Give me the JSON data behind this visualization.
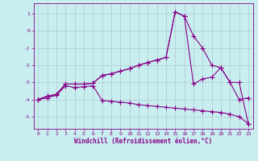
{
  "xlabel": "Windchill (Refroidissement éolien,°C)",
  "background_color": "#c8eef0",
  "line_color": "#880088",
  "grid_color": "#b0c8d0",
  "xlim": [
    -0.5,
    23.5
  ],
  "ylim": [
    -5.7,
    1.6
  ],
  "yticks": [
    1,
    0,
    -1,
    -2,
    -3,
    -4,
    -5
  ],
  "xticks": [
    0,
    1,
    2,
    3,
    4,
    5,
    6,
    7,
    8,
    9,
    10,
    11,
    12,
    13,
    14,
    15,
    16,
    17,
    18,
    19,
    20,
    21,
    22,
    23
  ],
  "line1_x": [
    0,
    1,
    2,
    3,
    4,
    5,
    6,
    7,
    8,
    9,
    10,
    11,
    12,
    13,
    14,
    15,
    16,
    17,
    18,
    19,
    20,
    21,
    22,
    23
  ],
  "line1_y": [
    -4.0,
    -3.8,
    -3.7,
    -3.1,
    -3.1,
    -3.1,
    -3.05,
    -2.6,
    -2.5,
    -2.35,
    -2.2,
    -2.0,
    -1.85,
    -1.7,
    -1.55,
    1.1,
    0.85,
    -0.3,
    -1.0,
    -2.0,
    -2.15,
    -3.0,
    -3.0,
    -5.4
  ],
  "line2_x": [
    0,
    1,
    2,
    3,
    4,
    5,
    6,
    7,
    8,
    9,
    10,
    11,
    12,
    13,
    14,
    15,
    16,
    17,
    18,
    19,
    20,
    21,
    22,
    23
  ],
  "line2_y": [
    -4.0,
    -3.8,
    -3.7,
    -3.1,
    -3.1,
    -3.1,
    -3.05,
    -2.6,
    -2.5,
    -2.35,
    -2.2,
    -2.0,
    -1.85,
    -1.7,
    -1.55,
    1.1,
    0.85,
    -3.1,
    -2.8,
    -2.7,
    -2.15,
    -3.0,
    -4.0,
    -3.9
  ],
  "line3_x": [
    0,
    1,
    2,
    3,
    4,
    5,
    6,
    7,
    8,
    9,
    10,
    11,
    12,
    13,
    14,
    15,
    16,
    17,
    18,
    19,
    20,
    21,
    22,
    23
  ],
  "line3_y": [
    -4.0,
    -3.9,
    -3.75,
    -3.2,
    -3.3,
    -3.25,
    -3.2,
    -4.05,
    -4.1,
    -4.15,
    -4.2,
    -4.3,
    -4.35,
    -4.4,
    -4.45,
    -4.5,
    -4.55,
    -4.6,
    -4.65,
    -4.7,
    -4.75,
    -4.85,
    -5.0,
    -5.4
  ],
  "marker": "+",
  "markersize": 4,
  "linewidth": 0.8
}
